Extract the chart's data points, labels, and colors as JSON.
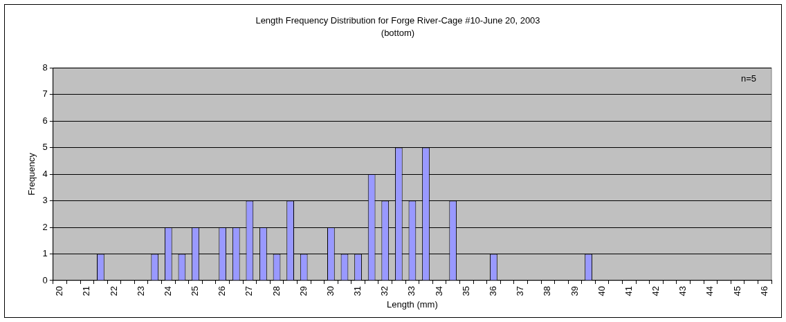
{
  "chart_data": {
    "type": "bar",
    "title": "Length Frequency Distribution for Forge River-Cage #10-June 20, 2003",
    "subtitle": "(bottom)",
    "xlabel": "Length (mm)",
    "ylabel": "Frequency",
    "annotations": [
      "n=5"
    ],
    "categories": [
      "20",
      null,
      "21",
      null,
      "22",
      null,
      "23",
      null,
      "24",
      null,
      "25",
      null,
      "26",
      null,
      "27",
      null,
      "28",
      null,
      "29",
      null,
      "30",
      null,
      "31",
      null,
      "32",
      null,
      "33",
      null,
      "34",
      null,
      "35",
      null,
      "36",
      null,
      "37",
      null,
      "38",
      null,
      "39",
      null,
      "40",
      null,
      "41",
      null,
      "42",
      null,
      "43",
      null,
      "44",
      null,
      "45",
      null,
      "46"
    ],
    "values": [
      0,
      0,
      0,
      1,
      0,
      0,
      0,
      1,
      2,
      1,
      2,
      0,
      2,
      2,
      3,
      2,
      1,
      3,
      1,
      0,
      2,
      1,
      1,
      4,
      3,
      5,
      3,
      5,
      0,
      3,
      0,
      0,
      1,
      0,
      0,
      0,
      0,
      0,
      0,
      1,
      0,
      0,
      0,
      0,
      0,
      0,
      0,
      0,
      0,
      0,
      0,
      0,
      0
    ],
    "color": "#9999ff",
    "ylim": [
      0,
      8
    ],
    "yticks": [
      0,
      1,
      2,
      3,
      4,
      5,
      6,
      7,
      8
    ],
    "grid": "y",
    "legend": false
  }
}
